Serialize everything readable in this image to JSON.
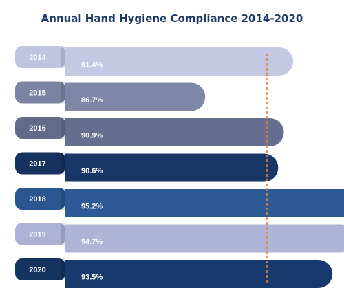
{
  "chart_data": {
    "type": "bar",
    "orientation": "horizontal",
    "title": "Annual Hand Hygiene Compliance 2014-2020",
    "categories": [
      "2014",
      "2015",
      "2016",
      "2017",
      "2018",
      "2019",
      "2020"
    ],
    "values": [
      91.4,
      86.7,
      90.9,
      90.6,
      95.2,
      94.7,
      93.5
    ],
    "value_labels": [
      "91.4%",
      "86.7%",
      "90.9%",
      "90.6%",
      "95.2%",
      "94.7%",
      "93.5%"
    ],
    "reference_line": {
      "value": 90,
      "style": "dashed"
    },
    "grid": false,
    "legend": "none"
  },
  "colors": {
    "title": "#1f3a68",
    "reference_line": "#e0823a",
    "bars": [
      "#c5c8e2",
      "#7e87a8",
      "#666e8f",
      "#193766",
      "#2d5a96",
      "#b0b5d8",
      "#17396e"
    ],
    "tabs": [
      "#c0c4e0",
      "#7c84a5",
      "#636b8b",
      "#16325e",
      "#2b5690",
      "#acb1d5",
      "#14335f"
    ],
    "bar_text": "#ffffff"
  }
}
